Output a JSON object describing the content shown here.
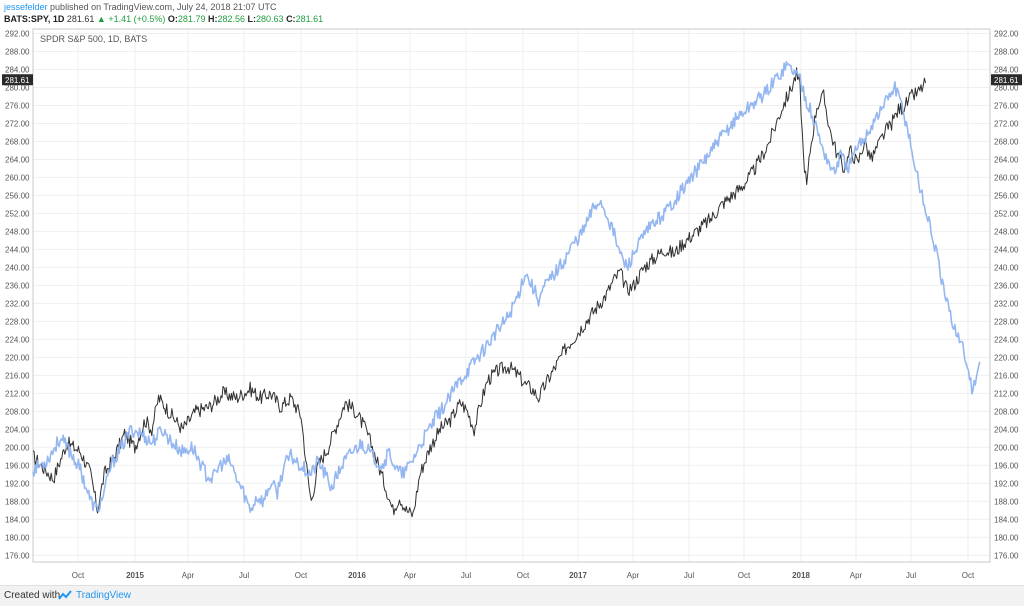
{
  "header": {
    "user": "jessefelder",
    "published": "published on TradingView.com, July 24, 2018 21:07 UTC",
    "symbol": "BATS:SPY, 1D",
    "last": "281.61",
    "change": "+1.41 (+0.5%)",
    "o_label": "O:",
    "o_value": "281.79",
    "h_label": "H:",
    "h_value": "282.56",
    "l_label": "L:",
    "l_value": "280.63",
    "c_label": "C:",
    "c_value": "281.61"
  },
  "footer": {
    "created_with": "Created with",
    "brand": "TradingView"
  },
  "chart_data": {
    "type": "line",
    "legend_text": "SPDR S&P 500, 1D, BATS",
    "price_tag": "281.61",
    "ylim": [
      174.5,
      293
    ],
    "y_ticks": [
      176,
      180,
      184,
      188,
      192,
      196,
      200,
      204,
      208,
      212,
      216,
      220,
      224,
      228,
      232,
      236,
      240,
      244,
      248,
      252,
      256,
      260,
      264,
      268,
      272,
      276,
      280,
      284,
      288,
      292
    ],
    "x_ticks": [
      "Oct",
      "2015",
      "Apr",
      "Jul",
      "Oct",
      "2016",
      "Apr",
      "Jul",
      "Oct",
      "2017",
      "Apr",
      "Jul",
      "Oct",
      "2018",
      "Apr",
      "Jul",
      "Oct"
    ],
    "x_tick_bold": [
      "2015",
      "2016",
      "2017",
      "2018"
    ],
    "grid": true,
    "colors": {
      "price": "#1a1a1a",
      "overlay": "#8fb3f0",
      "tag_bg": "#2b2b2b",
      "tag_text": "#ffffff"
    },
    "series": [
      {
        "key": "price",
        "points": [
          [
            0,
            198
          ],
          [
            6,
            193
          ],
          [
            10,
            201
          ],
          [
            14,
            199
          ],
          [
            17,
            194
          ],
          [
            19,
            186
          ],
          [
            21,
            194
          ],
          [
            24,
            198
          ],
          [
            27,
            203
          ],
          [
            30,
            200
          ],
          [
            33,
            206
          ],
          [
            35,
            204
          ],
          [
            37,
            211
          ],
          [
            40,
            208
          ],
          [
            44,
            204
          ],
          [
            48,
            208
          ],
          [
            52,
            209
          ],
          [
            56,
            212
          ],
          [
            60,
            211
          ],
          [
            64,
            213
          ],
          [
            67,
            211
          ],
          [
            70,
            212
          ],
          [
            73,
            209
          ],
          [
            76,
            211
          ],
          [
            79,
            207
          ],
          [
            81,
            193
          ],
          [
            82,
            188
          ],
          [
            84,
            196
          ],
          [
            87,
            200
          ],
          [
            89,
            204
          ],
          [
            92,
            210
          ],
          [
            95,
            208
          ],
          [
            98,
            204
          ],
          [
            100,
            200
          ],
          [
            104,
            191
          ],
          [
            106,
            186
          ],
          [
            108,
            189
          ],
          [
            110,
            186
          ],
          [
            112,
            185
          ],
          [
            114,
            194
          ],
          [
            117,
            200
          ],
          [
            120,
            204
          ],
          [
            123,
            206
          ],
          [
            126,
            210
          ],
          [
            128,
            208
          ],
          [
            130,
            204
          ],
          [
            132,
            210
          ],
          [
            134,
            215
          ],
          [
            137,
            217
          ],
          [
            140,
            218
          ],
          [
            143,
            216
          ],
          [
            145,
            214
          ],
          [
            147,
            213
          ],
          [
            149,
            211
          ],
          [
            151,
            214
          ],
          [
            154,
            218
          ],
          [
            157,
            222
          ],
          [
            160,
            225
          ],
          [
            163,
            228
          ],
          [
            166,
            231
          ],
          [
            169,
            234
          ],
          [
            171,
            237
          ],
          [
            173,
            239
          ],
          [
            175,
            235
          ],
          [
            177,
            236
          ],
          [
            180,
            240
          ],
          [
            183,
            242
          ],
          [
            186,
            244
          ],
          [
            189,
            243
          ],
          [
            191,
            245
          ],
          [
            194,
            247
          ],
          [
            197,
            249
          ],
          [
            200,
            251
          ],
          [
            203,
            254
          ],
          [
            206,
            256
          ],
          [
            209,
            258
          ],
          [
            212,
            261
          ],
          [
            215,
            265
          ],
          [
            217,
            268
          ],
          [
            219,
            272
          ],
          [
            221,
            276
          ],
          [
            223,
            279
          ],
          [
            225,
            283
          ],
          [
            226,
            280
          ],
          [
            227,
            265
          ],
          [
            228,
            258
          ],
          [
            229,
            266
          ],
          [
            231,
            276
          ],
          [
            233,
            278
          ],
          [
            235,
            270
          ],
          [
            237,
            265
          ],
          [
            239,
            262
          ],
          [
            241,
            266
          ],
          [
            243,
            263
          ],
          [
            245,
            268
          ],
          [
            247,
            264
          ],
          [
            249,
            267
          ],
          [
            251,
            270
          ],
          [
            253,
            272
          ],
          [
            255,
            275
          ],
          [
            257,
            276
          ],
          [
            259,
            278
          ],
          [
            261,
            279
          ],
          [
            263,
            281
          ]
        ]
      },
      {
        "key": "overlay",
        "points": [
          [
            0,
            195
          ],
          [
            4,
            197
          ],
          [
            8,
            202
          ],
          [
            11,
            199
          ],
          [
            14,
            195
          ],
          [
            17,
            188
          ],
          [
            19,
            186
          ],
          [
            21,
            190
          ],
          [
            23,
            196
          ],
          [
            26,
            200
          ],
          [
            29,
            204
          ],
          [
            32,
            203
          ],
          [
            35,
            201
          ],
          [
            38,
            204
          ],
          [
            41,
            201
          ],
          [
            44,
            199
          ],
          [
            47,
            200
          ],
          [
            49,
            197
          ],
          [
            51,
            194
          ],
          [
            53,
            193
          ],
          [
            55,
            196
          ],
          [
            58,
            197
          ],
          [
            60,
            193
          ],
          [
            62,
            190
          ],
          [
            64,
            186
          ],
          [
            66,
            189
          ],
          [
            68,
            188
          ],
          [
            70,
            192
          ],
          [
            72,
            190
          ],
          [
            74,
            196
          ],
          [
            76,
            198
          ],
          [
            79,
            196
          ],
          [
            82,
            194
          ],
          [
            84,
            197
          ],
          [
            86,
            194
          ],
          [
            88,
            191
          ],
          [
            91,
            196
          ],
          [
            94,
            199
          ],
          [
            97,
            201
          ],
          [
            100,
            198
          ],
          [
            103,
            196
          ],
          [
            105,
            199
          ],
          [
            107,
            195
          ],
          [
            109,
            194
          ],
          [
            111,
            196
          ],
          [
            113,
            199
          ],
          [
            116,
            203
          ],
          [
            119,
            207
          ],
          [
            122,
            210
          ],
          [
            125,
            214
          ],
          [
            128,
            217
          ],
          [
            131,
            220
          ],
          [
            134,
            223
          ],
          [
            137,
            226
          ],
          [
            140,
            229
          ],
          [
            143,
            234
          ],
          [
            145,
            239
          ],
          [
            147,
            236
          ],
          [
            149,
            233
          ],
          [
            151,
            236
          ],
          [
            153,
            238
          ],
          [
            156,
            241
          ],
          [
            159,
            245
          ],
          [
            162,
            248
          ],
          [
            165,
            253
          ],
          [
            167,
            255
          ],
          [
            169,
            252
          ],
          [
            171,
            248
          ],
          [
            173,
            243
          ],
          [
            175,
            240
          ],
          [
            177,
            243
          ],
          [
            180,
            247
          ],
          [
            183,
            250
          ],
          [
            186,
            252
          ],
          [
            189,
            255
          ],
          [
            192,
            258
          ],
          [
            195,
            261
          ],
          [
            198,
            264
          ],
          [
            201,
            267
          ],
          [
            204,
            270
          ],
          [
            207,
            273
          ],
          [
            210,
            275
          ],
          [
            213,
            277
          ],
          [
            216,
            279
          ],
          [
            218,
            281
          ],
          [
            220,
            283
          ],
          [
            222,
            285
          ],
          [
            224,
            284
          ],
          [
            226,
            282
          ],
          [
            228,
            277
          ],
          [
            230,
            273
          ],
          [
            232,
            268
          ],
          [
            234,
            264
          ],
          [
            236,
            261
          ],
          [
            238,
            265
          ],
          [
            240,
            262
          ],
          [
            242,
            265
          ],
          [
            244,
            268
          ],
          [
            246,
            270
          ],
          [
            248,
            273
          ],
          [
            250,
            275
          ],
          [
            252,
            278
          ],
          [
            254,
            280
          ],
          [
            256,
            276
          ],
          [
            258,
            270
          ],
          [
            260,
            262
          ],
          [
            262,
            256
          ],
          [
            264,
            250
          ],
          [
            266,
            244
          ],
          [
            268,
            236
          ],
          [
            270,
            230
          ],
          [
            272,
            226
          ],
          [
            274,
            222
          ],
          [
            276,
            216
          ],
          [
            277,
            212
          ],
          [
            278,
            216
          ],
          [
            279,
            219
          ]
        ]
      }
    ]
  }
}
